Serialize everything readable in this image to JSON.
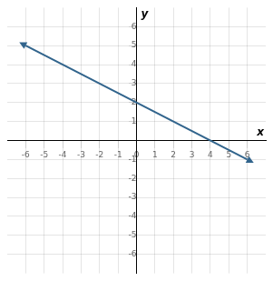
{
  "chart_data": {
    "type": "line",
    "xlabel": "x",
    "ylabel": "y",
    "x": [
      -6.0,
      6.0
    ],
    "values": [
      5.0,
      -1.0
    ],
    "color": "#31648C",
    "marker": "none",
    "xlim": [
      -7,
      7
    ],
    "ylim": [
      -7,
      7
    ],
    "xticks": [
      -6,
      -5,
      -4,
      -3,
      -2,
      -1,
      0,
      1,
      2,
      3,
      4,
      5,
      6
    ],
    "yticks": [
      -6,
      -5,
      -4,
      -3,
      -2,
      -1,
      1,
      2,
      3,
      4,
      5,
      6
    ],
    "grid": true
  }
}
